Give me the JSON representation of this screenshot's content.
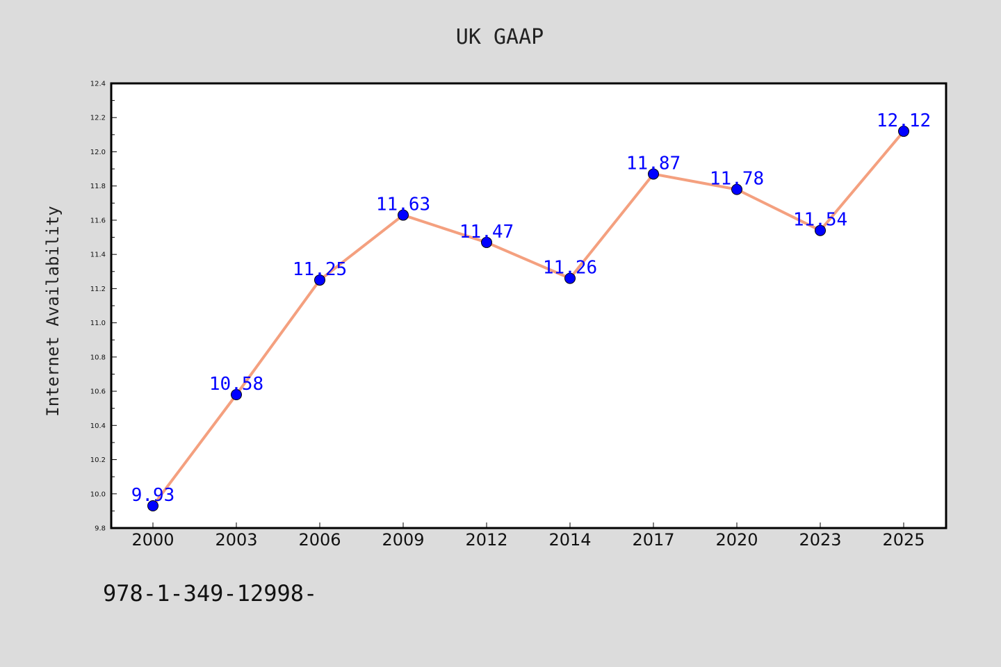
{
  "chart_data": {
    "type": "line",
    "title": "UK GAAP",
    "xlabel": "",
    "ylabel": "Internet Availability",
    "categories": [
      "2000",
      "2003",
      "2006",
      "2009",
      "2012",
      "2014",
      "2017",
      "2020",
      "2023",
      "2025"
    ],
    "series": [
      {
        "values": [
          9.93,
          10.58,
          11.25,
          11.63,
          11.47,
          11.26,
          11.87,
          11.78,
          11.54,
          12.12
        ],
        "data_labels": [
          "9.93",
          "10.58",
          "11.25",
          "11.63",
          "11.47",
          "11.26",
          "11.87",
          "11.78",
          "11.54",
          "12.12"
        ],
        "line_color": "#f4a07f",
        "marker_color": "#0000ff"
      }
    ],
    "ylim": [
      9.8,
      12.4
    ],
    "yticks": [
      "9.8",
      "10.0",
      "10.2",
      "10.4",
      "10.6",
      "10.8",
      "11.0",
      "11.2",
      "11.4",
      "11.6",
      "11.8",
      "12.0",
      "12.2",
      "12.4"
    ],
    "grid": false,
    "label_color": "#0000ff"
  },
  "footer": {
    "text": "978-1-349-12998-"
  },
  "colors": {
    "background": "#dcdcdc",
    "plot_background": "#ffffff",
    "line": "#f4a07f",
    "marker": "#0000ff"
  }
}
